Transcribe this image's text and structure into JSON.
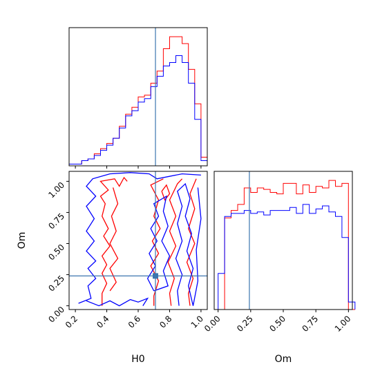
{
  "chart_data": {
    "type": "corner",
    "parameters": [
      "H0",
      "Om"
    ],
    "truths": {
      "H0": 0.71,
      "Om": 0.24
    },
    "colors": {
      "series_a": "#ff0000",
      "series_b": "#0000ff",
      "truth": "#3b75af"
    },
    "panels": [
      {
        "name": "hist-H0",
        "type": "histogram",
        "xlim": [
          0.16,
          1.04
        ],
        "bin_edges": [
          0.16,
          0.2,
          0.24,
          0.28,
          0.32,
          0.36,
          0.4,
          0.44,
          0.48,
          0.52,
          0.56,
          0.6,
          0.64,
          0.68,
          0.72,
          0.76,
          0.8,
          0.84,
          0.88,
          0.92,
          0.96,
          1.0,
          1.04
        ],
        "series": [
          {
            "color": "red",
            "counts": [
              1,
              1,
              3,
              4,
              7,
              10,
              13,
              16,
              23,
              30,
              34,
              40,
              41,
              48,
              55,
              68,
              75,
              75,
              71,
              56,
              36,
              5
            ]
          },
          {
            "color": "blue",
            "counts": [
              1,
              1,
              3,
              4,
              6,
              9,
              12,
              16,
              22,
              29,
              32,
              37,
              39,
              46,
              52,
              58,
              60,
              64,
              60,
              48,
              27,
              3
            ]
          }
        ],
        "xticks": [
          0.2,
          0.4,
          0.6,
          0.8,
          1.0
        ]
      },
      {
        "name": "hist-Om",
        "type": "histogram",
        "xlim": [
          -0.03,
          1.03
        ],
        "bin_edges": [
          0.0,
          0.05,
          0.1,
          0.15,
          0.2,
          0.25,
          0.3,
          0.35,
          0.4,
          0.45,
          0.5,
          0.55,
          0.6,
          0.65,
          0.7,
          0.75,
          0.8,
          0.85,
          0.9,
          0.95,
          1.0,
          1.05
        ],
        "series": [
          {
            "color": "red",
            "counts": [
              0,
              61,
              66,
              70,
              81,
              78,
              81,
              80,
              78,
              77,
              84,
              84,
              77,
              83,
              78,
              82,
              81,
              86,
              82,
              84,
              0
            ]
          },
          {
            "color": "blue",
            "counts": [
              24,
              62,
              64,
              64,
              66,
              64,
              65,
              63,
              66,
              66,
              66,
              68,
              64,
              70,
              64,
              67,
              69,
              65,
              62,
              48,
              5
            ]
          }
        ],
        "xticks": [
          0.0,
          0.25,
          0.5,
          0.75,
          1.0
        ],
        "xtick_labels": [
          "0.00",
          "0.25",
          "0.50",
          "0.75",
          "1.00"
        ],
        "xlabel": "Om"
      },
      {
        "name": "contour-H0-Om",
        "type": "contour",
        "xlim": [
          0.16,
          1.04
        ],
        "ylim": [
          -0.03,
          1.08
        ],
        "xlabel": "H0",
        "ylabel": "Om",
        "xticks": [
          0.2,
          0.4,
          0.6,
          0.8,
          1.0
        ],
        "xtick_labels": [
          "0.2",
          "0.4",
          "0.6",
          "0.8",
          "1.0"
        ],
        "yticks": [
          0.0,
          0.25,
          0.5,
          0.75,
          1.0
        ],
        "ytick_labels": [
          "0.00",
          "0.25",
          "0.50",
          "0.75",
          "1.00"
        ],
        "truth_point": [
          0.71,
          0.24
        ],
        "series": [
          {
            "color": "red",
            "contours": [
              [
                [
                  0.37,
                  0.0
                ],
                [
                  0.37,
                  0.1
                ],
                [
                  0.4,
                  0.18
                ],
                [
                  0.37,
                  0.26
                ],
                [
                  0.4,
                  0.33
                ],
                [
                  0.37,
                  0.4
                ],
                [
                  0.42,
                  0.48
                ],
                [
                  0.38,
                  0.56
                ],
                [
                  0.41,
                  0.62
                ],
                [
                  0.37,
                  0.72
                ],
                [
                  0.39,
                  0.82
                ],
                [
                  0.36,
                  0.88
                ],
                [
                  0.41,
                  0.93
                ],
                [
                  0.36,
                  1.0
                ],
                [
                  0.45,
                  1.02
                ],
                [
                  0.48,
                  0.96
                ],
                [
                  0.51,
                  1.03
                ],
                [
                  0.53,
                  1.0
                ]
              ],
              [
                [
                  0.42,
                  0.12
                ],
                [
                  0.46,
                  0.19
                ],
                [
                  0.42,
                  0.3
                ],
                [
                  0.47,
                  0.38
                ],
                [
                  0.42,
                  0.5
                ],
                [
                  0.46,
                  0.6
                ],
                [
                  0.43,
                  0.72
                ],
                [
                  0.47,
                  0.82
                ],
                [
                  0.44,
                  0.95
                ]
              ],
              [
                [
                  0.7,
                  0.0
                ],
                [
                  0.7,
                  0.08
                ],
                [
                  0.73,
                  0.2
                ],
                [
                  0.68,
                  0.32
                ],
                [
                  0.73,
                  0.42
                ],
                [
                  0.69,
                  0.52
                ],
                [
                  0.74,
                  0.62
                ],
                [
                  0.7,
                  0.72
                ],
                [
                  0.73,
                  0.85
                ],
                [
                  0.68,
                  0.97
                ],
                [
                  0.76,
                  1.02
                ]
              ],
              [
                [
                  0.81,
                  0.0
                ],
                [
                  0.8,
                  0.1
                ],
                [
                  0.83,
                  0.22
                ],
                [
                  0.79,
                  0.35
                ],
                [
                  0.84,
                  0.48
                ],
                [
                  0.8,
                  0.6
                ],
                [
                  0.84,
                  0.72
                ],
                [
                  0.8,
                  0.85
                ],
                [
                  0.85,
                  0.98
                ],
                [
                  0.88,
                  1.02
                ]
              ],
              [
                [
                  0.93,
                  0.0
                ],
                [
                  0.92,
                  0.1
                ],
                [
                  0.95,
                  0.22
                ],
                [
                  0.91,
                  0.35
                ],
                [
                  0.96,
                  0.5
                ],
                [
                  0.92,
                  0.62
                ],
                [
                  0.96,
                  0.78
                ],
                [
                  0.93,
                  0.9
                ],
                [
                  0.97,
                  1.02
                ]
              ],
              [
                [
                  0.75,
                  0.92
                ],
                [
                  0.78,
                  0.97
                ],
                [
                  0.8,
                  0.9
                ],
                [
                  0.77,
                  0.85
                ],
                [
                  0.75,
                  0.92
                ]
              ]
            ]
          },
          {
            "color": "blue",
            "contours": [
              [
                [
                  0.22,
                  0.02
                ],
                [
                  0.3,
                  0.06
                ],
                [
                  0.28,
                  0.16
                ],
                [
                  0.33,
                  0.22
                ],
                [
                  0.28,
                  0.3
                ],
                [
                  0.33,
                  0.36
                ],
                [
                  0.27,
                  0.44
                ],
                [
                  0.32,
                  0.52
                ],
                [
                  0.27,
                  0.6
                ],
                [
                  0.32,
                  0.7
                ],
                [
                  0.27,
                  0.8
                ],
                [
                  0.33,
                  0.88
                ],
                [
                  0.27,
                  0.96
                ],
                [
                  0.31,
                  1.02
                ],
                [
                  0.42,
                  1.06
                ],
                [
                  0.55,
                  1.07
                ],
                [
                  0.67,
                  1.06
                ],
                [
                  0.72,
                  1.02
                ],
                [
                  0.8,
                  1.04
                ],
                [
                  0.88,
                  1.06
                ],
                [
                  1.0,
                  1.05
                ]
              ],
              [
                [
                  0.27,
                  0.04
                ],
                [
                  0.35,
                  0.0
                ],
                [
                  0.42,
                  0.04
                ],
                [
                  0.48,
                  0.0
                ],
                [
                  0.55,
                  0.05
                ],
                [
                  0.6,
                  0.03
                ],
                [
                  0.66,
                  0.06
                ],
                [
                  0.63,
                  0.0
                ]
              ],
              [
                [
                  0.7,
                  0.12
                ],
                [
                  0.66,
                  0.22
                ],
                [
                  0.71,
                  0.32
                ],
                [
                  0.67,
                  0.42
                ],
                [
                  0.72,
                  0.52
                ],
                [
                  0.68,
                  0.62
                ],
                [
                  0.73,
                  0.72
                ],
                [
                  0.7,
                  0.82
                ],
                [
                  0.78,
                  0.88
                ],
                [
                  0.76,
                  0.76
                ],
                [
                  0.79,
                  0.64
                ],
                [
                  0.75,
                  0.52
                ],
                [
                  0.8,
                  0.4
                ],
                [
                  0.76,
                  0.28
                ],
                [
                  0.79,
                  0.16
                ],
                [
                  0.7,
                  0.12
                ]
              ],
              [
                [
                  0.86,
                  0.0
                ],
                [
                  0.85,
                  0.12
                ],
                [
                  0.88,
                  0.25
                ],
                [
                  0.84,
                  0.38
                ],
                [
                  0.88,
                  0.52
                ],
                [
                  0.85,
                  0.66
                ],
                [
                  0.88,
                  0.8
                ],
                [
                  0.85,
                  0.92
                ],
                [
                  0.9,
                  0.98
                ],
                [
                  0.93,
                  0.86
                ],
                [
                  0.9,
                  0.72
                ],
                [
                  0.94,
                  0.58
                ],
                [
                  0.91,
                  0.44
                ],
                [
                  0.95,
                  0.3
                ],
                [
                  0.92,
                  0.16
                ],
                [
                  0.95,
                  0.0
                ]
              ],
              [
                [
                  0.95,
                  0.0
                ],
                [
                  0.98,
                  0.2
                ],
                [
                  0.97,
                  0.45
                ],
                [
                  1.0,
                  0.7
                ],
                [
                  0.98,
                  0.95
                ]
              ]
            ]
          }
        ]
      }
    ]
  }
}
